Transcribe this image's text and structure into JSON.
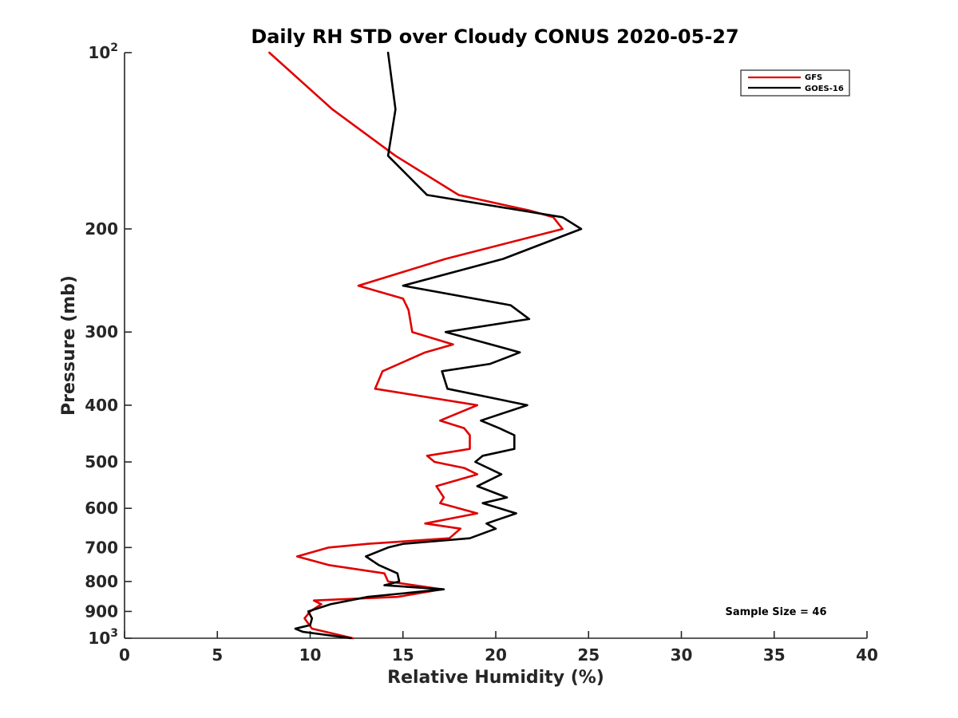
{
  "chart_data": {
    "type": "line",
    "title": "Daily RH STD over Cloudy CONUS 2020-05-27",
    "xlabel": "Relative Humidity (%)",
    "ylabel": "Pressure (mb)",
    "xlim": [
      0,
      40
    ],
    "ylim": [
      100,
      1000
    ],
    "y_scale": "log",
    "y_reversed": true,
    "grid": false,
    "legend_position": "top-right",
    "x_ticks": [
      0,
      5,
      10,
      15,
      20,
      25,
      30,
      35,
      40
    ],
    "y_ticks": [
      {
        "value": 100,
        "base": "10",
        "exp": "2"
      },
      {
        "value": 200,
        "label": "200"
      },
      {
        "value": 300,
        "label": "300"
      },
      {
        "value": 400,
        "label": "400"
      },
      {
        "value": 500,
        "label": "500"
      },
      {
        "value": 600,
        "label": "600"
      },
      {
        "value": 700,
        "label": "700"
      },
      {
        "value": 800,
        "label": "800"
      },
      {
        "value": 900,
        "label": "900"
      },
      {
        "value": 1000,
        "base": "10",
        "exp": "3"
      }
    ],
    "series": [
      {
        "name": "GFS",
        "color": "#e00000",
        "points": [
          [
            7.8,
            100
          ],
          [
            11.2,
            125
          ],
          [
            14.6,
            150
          ],
          [
            18.0,
            175
          ],
          [
            21.8,
            186
          ],
          [
            23.1,
            191
          ],
          [
            23.6,
            200
          ],
          [
            17.3,
            225
          ],
          [
            12.6,
            250
          ],
          [
            15.0,
            263
          ],
          [
            15.3,
            275
          ],
          [
            15.5,
            300
          ],
          [
            17.7,
            315
          ],
          [
            16.2,
            325
          ],
          [
            13.9,
            350
          ],
          [
            13.5,
            375
          ],
          [
            19.0,
            400
          ],
          [
            17.0,
            425
          ],
          [
            18.3,
            438
          ],
          [
            18.6,
            450
          ],
          [
            18.6,
            475
          ],
          [
            16.3,
            488
          ],
          [
            16.7,
            500
          ],
          [
            18.3,
            512
          ],
          [
            19.0,
            525
          ],
          [
            16.8,
            550
          ],
          [
            17.2,
            575
          ],
          [
            17.0,
            588
          ],
          [
            19.0,
            612
          ],
          [
            16.2,
            637
          ],
          [
            18.1,
            650
          ],
          [
            17.5,
            675
          ],
          [
            13.1,
            690
          ],
          [
            11.0,
            700
          ],
          [
            9.3,
            725
          ],
          [
            11.0,
            750
          ],
          [
            14.0,
            775
          ],
          [
            14.2,
            800
          ],
          [
            17.1,
            825
          ],
          [
            14.7,
            850
          ],
          [
            10.2,
            862
          ],
          [
            10.6,
            875
          ],
          [
            10.0,
            900
          ],
          [
            9.7,
            925
          ],
          [
            10.1,
            963
          ],
          [
            12.3,
            1000
          ]
        ]
      },
      {
        "name": "GOES-16",
        "color": "#000000",
        "points": [
          [
            14.2,
            100
          ],
          [
            14.6,
            125
          ],
          [
            14.2,
            150
          ],
          [
            16.3,
            175
          ],
          [
            23.6,
            191
          ],
          [
            24.6,
            200
          ],
          [
            20.4,
            225
          ],
          [
            15.0,
            250
          ],
          [
            20.8,
            270
          ],
          [
            21.8,
            285
          ],
          [
            17.3,
            300
          ],
          [
            21.3,
            325
          ],
          [
            19.7,
            340
          ],
          [
            17.1,
            350
          ],
          [
            17.4,
            375
          ],
          [
            21.7,
            400
          ],
          [
            19.2,
            425
          ],
          [
            20.2,
            438
          ],
          [
            21.0,
            450
          ],
          [
            21.0,
            475
          ],
          [
            19.3,
            488
          ],
          [
            18.9,
            500
          ],
          [
            20.3,
            525
          ],
          [
            19.0,
            550
          ],
          [
            20.6,
            575
          ],
          [
            19.3,
            588
          ],
          [
            21.1,
            612
          ],
          [
            19.5,
            637
          ],
          [
            20.0,
            650
          ],
          [
            18.6,
            675
          ],
          [
            15.0,
            690
          ],
          [
            14.2,
            700
          ],
          [
            13.0,
            725
          ],
          [
            13.7,
            750
          ],
          [
            14.7,
            775
          ],
          [
            14.8,
            800
          ],
          [
            14.0,
            812
          ],
          [
            17.2,
            825
          ],
          [
            13.1,
            850
          ],
          [
            11.1,
            875
          ],
          [
            9.9,
            900
          ],
          [
            10.1,
            925
          ],
          [
            10.0,
            950
          ],
          [
            9.2,
            963
          ],
          [
            9.6,
            975
          ],
          [
            12.2,
            1000
          ]
        ]
      }
    ],
    "annotations": [
      {
        "text": "Sample Size = 46"
      }
    ]
  }
}
